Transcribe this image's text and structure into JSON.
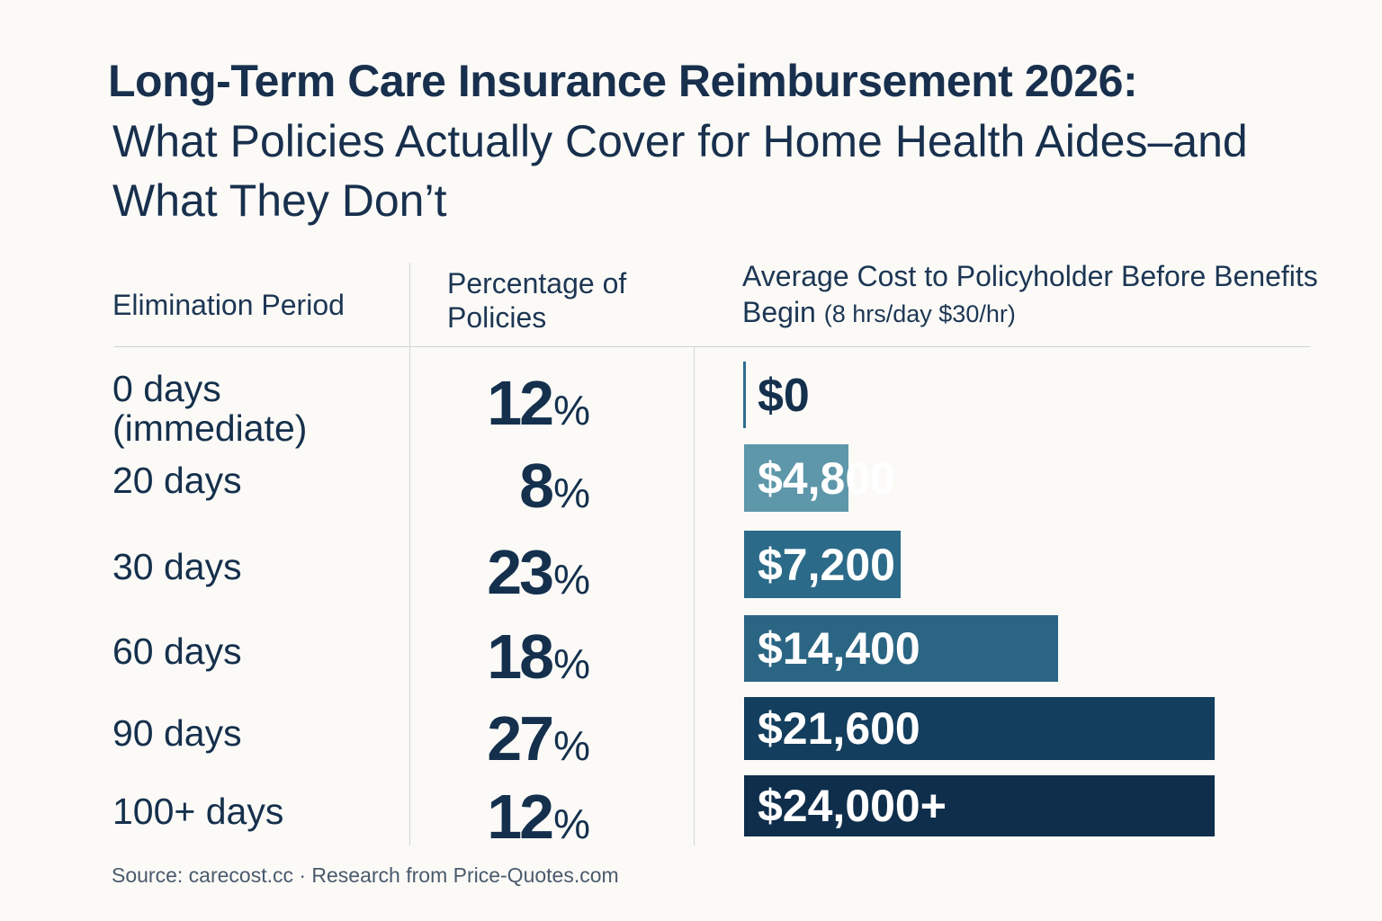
{
  "chart_data": {
    "type": "bar",
    "title": "Long-Term Care Insurance Reimbursement 2026:",
    "subtitle": "What Policies Actually Cover for Home Health Aides–and What They Don’t",
    "columns": {
      "period": "Elimination Period",
      "percentage": "Percentage of Policies",
      "cost": "Average Cost to Policyholder Before Benefits Begin",
      "cost_note": "(8 hrs/day $30/hr)"
    },
    "categories": [
      "0 days (immediate)",
      "20 days",
      "30 days",
      "60 days",
      "90 days",
      "100+ days"
    ],
    "series": [
      {
        "name": "Percentage of Policies",
        "values": [
          12,
          8,
          23,
          18,
          27,
          12
        ],
        "unit": "%"
      },
      {
        "name": "Average Cost to Policyholder Before Benefits Begin",
        "values": [
          0,
          4800,
          7200,
          14400,
          21600,
          24000
        ],
        "labels": [
          "$0",
          "$4,800",
          "$7,200",
          "$14,400",
          "$21,600",
          "$24,000+"
        ]
      }
    ],
    "bar_colors": [
      "#2c6f8f",
      "#5d97a9",
      "#2b6a88",
      "#2b6584",
      "#133e5d",
      "#0f2e4c"
    ],
    "source": "Source: carecost.cc · Research from Price-Quotes.com"
  }
}
